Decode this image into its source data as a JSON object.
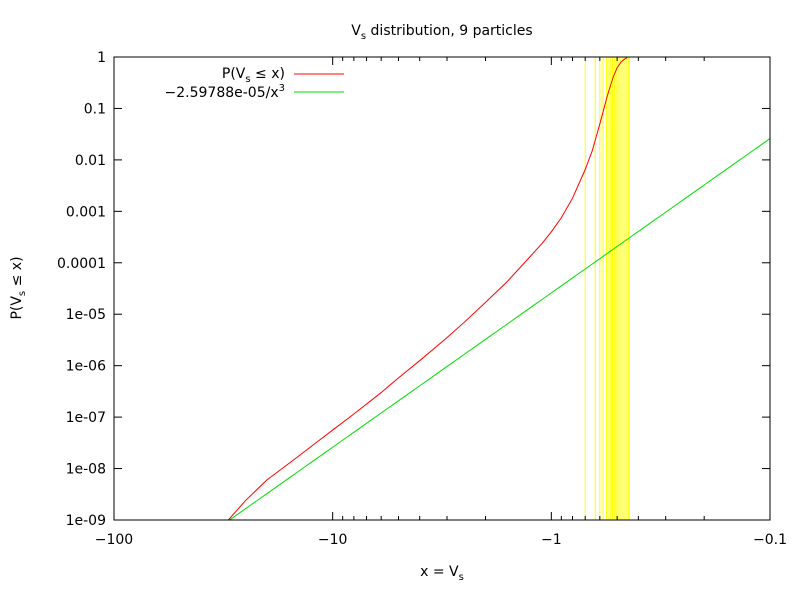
{
  "chart_data": {
    "type": "line",
    "title": "Vs distribution, 9 particles",
    "title_parts": {
      "main": "V",
      "sub": "s",
      "rest": " distribution, 9 particles"
    },
    "xlabel": "x = Vs",
    "xlabel_parts": {
      "main": "x = V",
      "sub": "s",
      "rest": ""
    },
    "ylabel": "P(Vs ≤ x)",
    "ylabel_parts": {
      "main": "P(V",
      "sub": "s",
      "rest": " ≤ x)"
    },
    "x_scale": "negative-log",
    "y_scale": "log",
    "xlim": [
      -100,
      -0.1
    ],
    "ylim": [
      1e-09,
      1
    ],
    "grid": false,
    "legend_position": "top-left",
    "x_ticks": [
      {
        "value": -100,
        "label": "−100"
      },
      {
        "value": -10,
        "label": "−10"
      },
      {
        "value": -1,
        "label": "−1"
      },
      {
        "value": -0.1,
        "label": "−0.1"
      }
    ],
    "y_ticks": [
      {
        "value": 1,
        "label": "1"
      },
      {
        "value": 0.1,
        "label": "0.1"
      },
      {
        "value": 0.01,
        "label": "0.01"
      },
      {
        "value": 0.001,
        "label": "0.001"
      },
      {
        "value": 0.0001,
        "label": "0.0001"
      },
      {
        "value": 1e-05,
        "label": "1e-05"
      },
      {
        "value": 1e-06,
        "label": "1e-06"
      },
      {
        "value": 1e-07,
        "label": "1e-07"
      },
      {
        "value": 1e-08,
        "label": "1e-08"
      },
      {
        "value": 1e-09,
        "label": "1e-09"
      }
    ],
    "series": [
      {
        "name": "P(Vs ≤ x)",
        "legend_parts": {
          "main": "P(V",
          "sub": "s",
          "rest": " ≤ x)"
        },
        "color": "#ff0000",
        "x": [
          -30,
          -25,
          -20,
          -15,
          -12,
          -10,
          -8,
          -6,
          -5,
          -4,
          -3,
          -2.5,
          -2,
          -1.6,
          -1.3,
          -1.1,
          -1.0,
          -0.9,
          -0.8,
          -0.7,
          -0.65,
          -0.6,
          -0.55,
          -0.52,
          -0.5,
          -0.48,
          -0.46,
          -0.45
        ],
        "y": [
          1e-09,
          2.4e-09,
          6e-09,
          1.5e-08,
          3.1e-08,
          5.6e-08,
          1.15e-07,
          3e-07,
          5.8e-07,
          1.25e-06,
          3.5e-06,
          7e-06,
          1.7e-05,
          4.2e-05,
          0.00011,
          0.00024,
          0.0004,
          0.00075,
          0.0018,
          0.0065,
          0.015,
          0.05,
          0.2,
          0.42,
          0.62,
          0.8,
          0.93,
          0.97
        ]
      },
      {
        "name": "−2.59788e-05/x3",
        "legend_parts": {
          "main": "−2.59788e-05/x",
          "sup": "3"
        },
        "color": "#00dd00",
        "coefficient": -2.59788e-05,
        "power": 3
      }
    ],
    "vertical_lines": {
      "color": "#ffff00",
      "x": [
        -0.7,
        -0.63,
        -0.6,
        -0.58,
        -0.56,
        -0.545,
        -0.535,
        -0.525,
        -0.515,
        -0.505,
        -0.495,
        -0.485,
        -0.475,
        -0.465,
        -0.455,
        -0.445,
        -0.44
      ]
    }
  }
}
